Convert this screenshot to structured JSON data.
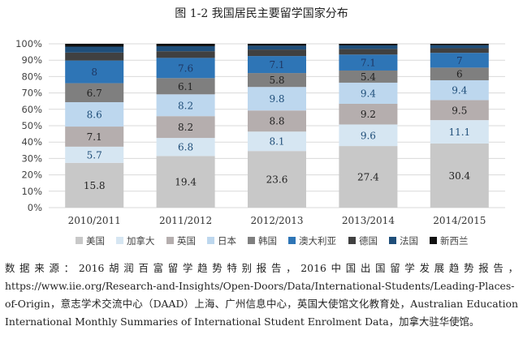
{
  "title": "图 1-2  我国居民主要留学国家分布",
  "source_note": "数据来源：2016胡润百富留学趋势特别报告，2016中国出国留学发展趋势报告，https://www.iie.org/Research-and-Insights/Open-Doors/Data/International-Students/Leading-Places-of-Origin，意志学术交流中心（DAAD）上海、广州信息中心，英国大使馆文化教育处，Australian Education International Monthly Summaries of International Student Enrolment Data，加拿大驻华使馆。",
  "chart_data": {
    "type": "bar",
    "stacked": true,
    "categories": [
      "2010/2011",
      "2011/2012",
      "2012/2013",
      "2013/2014",
      "2014/2015"
    ],
    "series": [
      {
        "name": "美国",
        "color": "#c8c8c8",
        "values": [
          15.8,
          19.4,
          23.6,
          27.4,
          30.4
        ],
        "label_color": "#222222"
      },
      {
        "name": "加拿大",
        "color": "#d6e6f2",
        "values": [
          5.7,
          6.8,
          8.1,
          9.6,
          11.1
        ],
        "label_color": "#1f4e79"
      },
      {
        "name": "英国",
        "color": "#b5aeae",
        "values": [
          7.1,
          8.2,
          8.8,
          9.2,
          9.5
        ],
        "label_color": "#222222"
      },
      {
        "name": "日本",
        "color": "#bdd7ee",
        "values": [
          8.6,
          8.2,
          9.8,
          9.4,
          9.4
        ],
        "label_color": "#1f4e79"
      },
      {
        "name": "韩国",
        "color": "#7f7f7f",
        "values": [
          6.7,
          6.1,
          5.8,
          5.4,
          6.0
        ],
        "label_color": "#222222"
      },
      {
        "name": "澳大利亚",
        "color": "#2e75b6",
        "values": [
          8,
          7.6,
          7.1,
          7.1,
          7
        ],
        "label_color": "#1f3864"
      },
      {
        "name": "德国",
        "color": "#404040",
        "values": [
          2.8,
          2.5,
          2.7,
          2.5,
          2.2
        ],
        "label_color": "#ffffff"
      },
      {
        "name": "法国",
        "color": "#1f4e79",
        "values": [
          2.1,
          1.9,
          1.6,
          1.6,
          1.4
        ],
        "label_color": "#ffffff"
      },
      {
        "name": "新西兰",
        "color": "#111111",
        "values": [
          1.0,
          0.9,
          0.8,
          0.7,
          0.7
        ],
        "label_color": "#ffffff"
      }
    ],
    "labeled_series": [
      "美国",
      "加拿大",
      "英国",
      "日本",
      "韩国",
      "澳大利亚"
    ],
    "ylim": [
      0,
      100
    ],
    "yticks": [
      "0%",
      "10%",
      "20%",
      "30%",
      "40%",
      "50%",
      "60%",
      "70%",
      "80%",
      "90%",
      "100%"
    ],
    "grid": true,
    "legend": "bottom"
  }
}
